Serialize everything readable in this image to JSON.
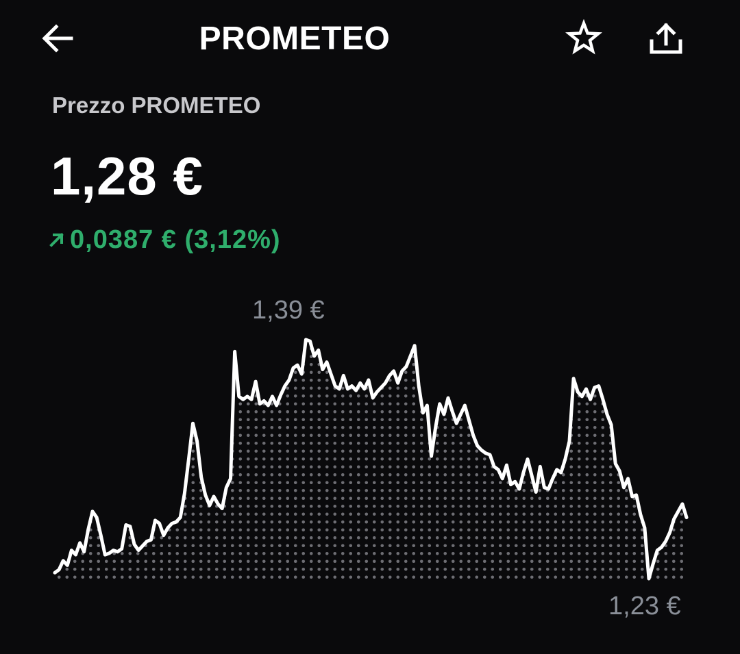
{
  "header": {
    "title": "PROMETEO",
    "back_icon": "arrow-left-icon",
    "favorite_icon": "star-outline-icon",
    "share_icon": "share-upload-icon"
  },
  "price": {
    "label": "Prezzo PROMETEO",
    "value": "1,28 €",
    "change_text": "0,0387 € (3,12%)",
    "change_direction": "up",
    "change_color": "#2fae6c"
  },
  "chart_data": {
    "type": "area",
    "max_label": "1,39 €",
    "min_label": "1,23 €",
    "line_color": "#ffffff",
    "fill": "dotted",
    "values": [
      1.233,
      1.235,
      1.241,
      1.238,
      1.248,
      1.245,
      1.253,
      1.247,
      1.262,
      1.274,
      1.27,
      1.258,
      1.245,
      1.246,
      1.248,
      1.247,
      1.249,
      1.265,
      1.264,
      1.252,
      1.248,
      1.251,
      1.254,
      1.255,
      1.268,
      1.266,
      1.258,
      1.263,
      1.266,
      1.267,
      1.27,
      1.286,
      1.309,
      1.333,
      1.321,
      1.297,
      1.285,
      1.278,
      1.284,
      1.279,
      1.276,
      1.29,
      1.296,
      1.381,
      1.351,
      1.349,
      1.351,
      1.349,
      1.361,
      1.346,
      1.348,
      1.345,
      1.351,
      1.345,
      1.352,
      1.358,
      1.362,
      1.37,
      1.372,
      1.366,
      1.389,
      1.388,
      1.378,
      1.382,
      1.369,
      1.374,
      1.366,
      1.358,
      1.356,
      1.365,
      1.356,
      1.358,
      1.355,
      1.36,
      1.356,
      1.362,
      1.35,
      1.354,
      1.357,
      1.36,
      1.365,
      1.368,
      1.36,
      1.368,
      1.371,
      1.378,
      1.385,
      1.358,
      1.34,
      1.345,
      1.311,
      1.33,
      1.346,
      1.339,
      1.35,
      1.341,
      1.333,
      1.339,
      1.345,
      1.335,
      1.325,
      1.318,
      1.315,
      1.313,
      1.312,
      1.304,
      1.302,
      1.296,
      1.305,
      1.292,
      1.294,
      1.289,
      1.3,
      1.309,
      1.298,
      1.287,
      1.304,
      1.29,
      1.289,
      1.296,
      1.302,
      1.3,
      1.309,
      1.321,
      1.363,
      1.354,
      1.351,
      1.356,
      1.349,
      1.357,
      1.358,
      1.349,
      1.339,
      1.332,
      1.306,
      1.301,
      1.29,
      1.296,
      1.284,
      1.285,
      1.272,
      1.263,
      1.229,
      1.239,
      1.248,
      1.25,
      1.254,
      1.26,
      1.269,
      1.274,
      1.279,
      1.27
    ]
  }
}
